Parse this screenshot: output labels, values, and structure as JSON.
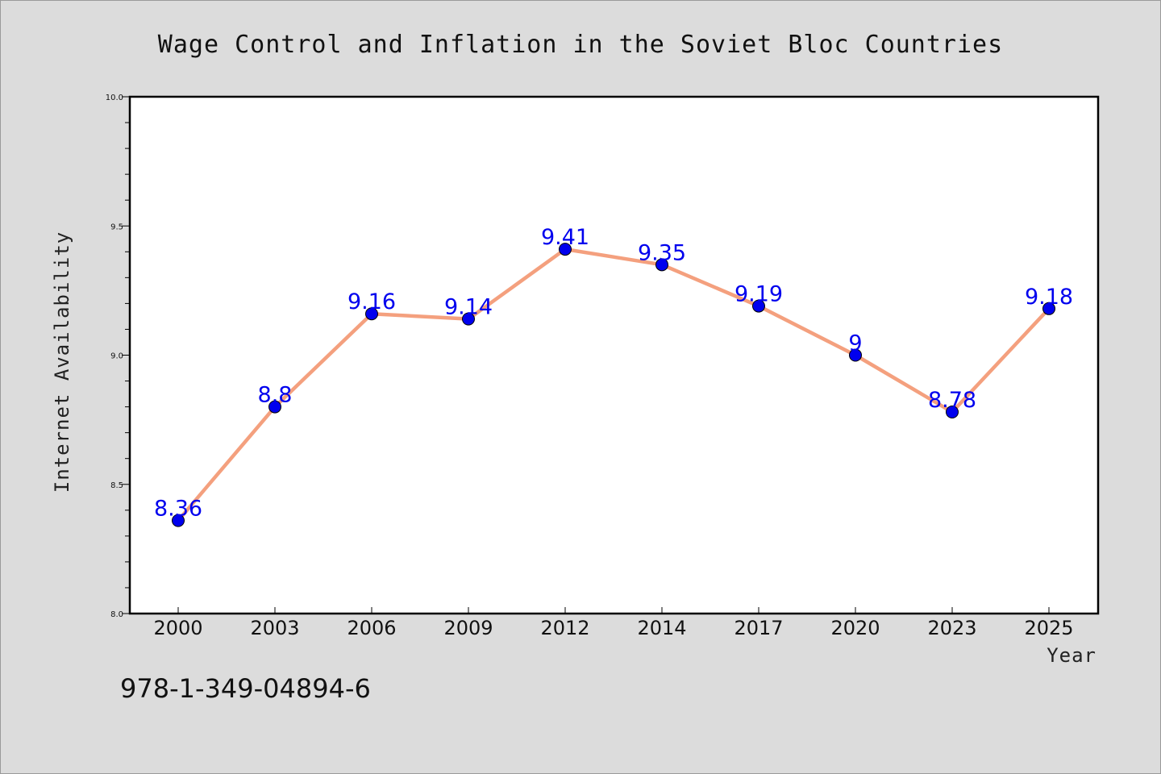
{
  "chart_data": {
    "type": "line",
    "title": "Wage Control and Inflation in the Soviet Bloc Countries",
    "xlabel": "Year",
    "ylabel": "Internet Availability",
    "categories": [
      "2000",
      "2003",
      "2006",
      "2009",
      "2012",
      "2014",
      "2017",
      "2020",
      "2023",
      "2025"
    ],
    "values": [
      8.36,
      8.8,
      9.16,
      9.14,
      9.41,
      9.35,
      9.19,
      9.0,
      8.78,
      9.18
    ],
    "data_labels": [
      "8.36",
      "8.8",
      "9.16",
      "9.14",
      "9.41",
      "9.35",
      "9.19",
      "9",
      "8.78",
      "9.18"
    ],
    "ylim": [
      8.0,
      10.0
    ],
    "yticks": [
      "8.0",
      "8.5",
      "9.0",
      "9.5",
      "10.0"
    ],
    "grid": false,
    "line_color": "#f4a07e",
    "marker_color": "#0000ee",
    "label_color": "#0000ee"
  },
  "footer": {
    "isbn": "978-1-349-04894-6"
  }
}
